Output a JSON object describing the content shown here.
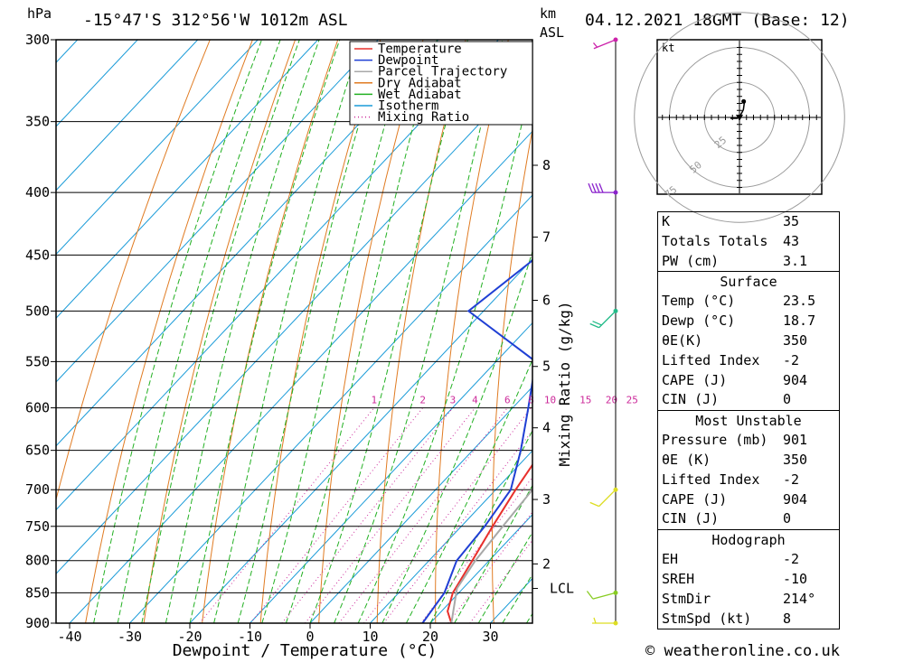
{
  "header": {
    "pressure_unit": "hPa",
    "location": "-15°47'S  312°56'W  1012m  ASL",
    "km_label": "km",
    "asl_label": "ASL",
    "datetime": "04.12.2021  18GMT  (Base: 12)"
  },
  "chart_data": {
    "type": "line",
    "subtype": "skew-T log-P diagram",
    "title": "-15°47'S  312°56'W  1012m  ASL",
    "xlabel": "Dewpoint / Temperature (°C)",
    "ylabel": "hPa",
    "right_axis_label": "Mixing Ratio (g/kg)",
    "x_ticks": [
      -40,
      -30,
      -20,
      -10,
      0,
      10,
      20,
      30
    ],
    "x_range": [
      -43,
      37
    ],
    "pressure_ticks": [
      300,
      350,
      400,
      450,
      500,
      550,
      600,
      650,
      700,
      750,
      800,
      850,
      900
    ],
    "pressure_range": [
      300,
      900
    ],
    "height_km_ticks": [
      {
        "km": "8",
        "p": 380
      },
      {
        "km": "7",
        "p": 435
      },
      {
        "km": "6",
        "p": 490
      },
      {
        "km": "5",
        "p": 555
      },
      {
        "km": "4",
        "p": 623
      },
      {
        "km": "3",
        "p": 713
      },
      {
        "km": "2",
        "p": 805
      },
      {
        "km": "LCL",
        "p": 843
      }
    ],
    "mixing_ratio_labels": [
      "1",
      "2",
      "3",
      "4",
      "6",
      "8",
      "10",
      "15",
      "20",
      "25"
    ],
    "legend": [
      {
        "name": "Temperature",
        "color": "#e8302c",
        "style": "solid"
      },
      {
        "name": "Dewpoint",
        "color": "#1f3fd4",
        "style": "solid"
      },
      {
        "name": "Parcel Trajectory",
        "color": "#a8a8a8",
        "style": "solid"
      },
      {
        "name": "Dry Adiabat",
        "color": "#e07b22",
        "style": "solid"
      },
      {
        "name": "Wet Adiabat",
        "color": "#22b022",
        "style": "solid"
      },
      {
        "name": "Isotherm",
        "color": "#1a9bd8",
        "style": "solid"
      },
      {
        "name": "Mixing Ratio",
        "color": "#cc2a9a",
        "style": "dotted"
      }
    ],
    "legend_placement": "top-right",
    "series": [
      {
        "name": "Temperature",
        "color": "#e8302c",
        "points": [
          [
            900,
            23.5
          ],
          [
            880,
            21
          ],
          [
            850,
            19
          ],
          [
            800,
            17.2
          ],
          [
            750,
            15.2
          ],
          [
            700,
            13.3
          ],
          [
            650,
            11.6
          ],
          [
            600,
            9.3
          ],
          [
            550,
            7.2
          ],
          [
            500,
            4.6
          ],
          [
            450,
            0.2
          ],
          [
            400,
            -4.4
          ],
          [
            350,
            -9.8
          ],
          [
            300,
            -15.6
          ]
        ]
      },
      {
        "name": "Dewpoint",
        "color": "#1f3fd4",
        "points": [
          [
            900,
            18.7
          ],
          [
            850,
            17.6
          ],
          [
            800,
            14.6
          ],
          [
            750,
            13.9
          ],
          [
            700,
            12.5
          ],
          [
            650,
            8.0
          ],
          [
            600,
            2.6
          ],
          [
            550,
            -3.4
          ],
          [
            500,
            -22.5
          ],
          [
            450,
            -19.5
          ],
          [
            400,
            -10.5
          ],
          [
            350,
            -13.7
          ],
          [
            300,
            -18.7
          ]
        ]
      },
      {
        "name": "Parcel Trajectory",
        "color": "#a8a8a8",
        "points": [
          [
            900,
            23.5
          ],
          [
            843,
            19.0
          ],
          [
            800,
            17.7
          ],
          [
            750,
            16.9
          ],
          [
            700,
            16.1
          ],
          [
            650,
            15.2
          ],
          [
            600,
            14.1
          ],
          [
            550,
            12.6
          ],
          [
            500,
            9.8
          ],
          [
            450,
            6.3
          ],
          [
            400,
            2.0
          ],
          [
            350,
            -3.0
          ]
        ]
      }
    ]
  },
  "hodograph": {
    "unit_label": "kt",
    "ring_labels": [
      "25",
      "50",
      "75"
    ],
    "points_kt": [
      [
        0,
        0
      ],
      [
        1.2,
        2.5
      ],
      [
        2.8,
        5.5
      ],
      [
        3.5,
        10.6
      ],
      [
        3.0,
        11.4
      ]
    ],
    "storm_motion": {
      "dir_deg": 214,
      "speed_kt": 8
    }
  },
  "wind_barbs": [
    {
      "p": 300,
      "color": "#cc22aa",
      "dir": 248,
      "kt": 5
    },
    {
      "p": 400,
      "color": "#8a22cc",
      "dir": 270,
      "kt": 40
    },
    {
      "p": 500,
      "color": "#22bb88",
      "dir": 225,
      "kt": 20
    },
    {
      "p": 700,
      "color": "#dddd22",
      "dir": 225,
      "kt": 10
    },
    {
      "p": 850,
      "color": "#88cc22",
      "dir": 255,
      "kt": 10
    },
    {
      "p": 900,
      "color": "#dddd22",
      "dir": 270,
      "kt": 5
    }
  ],
  "indices": [
    {
      "label": "K",
      "value": "35"
    },
    {
      "label": "Totals Totals",
      "value": "43"
    },
    {
      "label": "PW (cm)",
      "value": "3.1"
    }
  ],
  "surface": {
    "title": "Surface",
    "rows": [
      {
        "label": "Temp (°C)",
        "value": "23.5"
      },
      {
        "label": "Dewp (°C)",
        "value": "18.7"
      },
      {
        "label": "θE(K)",
        "value": "350"
      },
      {
        "label": "Lifted Index",
        "value": "-2"
      },
      {
        "label": "CAPE (J)",
        "value": "904"
      },
      {
        "label": "CIN (J)",
        "value": "0"
      }
    ]
  },
  "most_unstable": {
    "title": "Most Unstable",
    "rows": [
      {
        "label": "Pressure (mb)",
        "value": "901"
      },
      {
        "label": "θE (K)",
        "value": "350"
      },
      {
        "label": "Lifted Index",
        "value": "-2"
      },
      {
        "label": "CAPE (J)",
        "value": "904"
      },
      {
        "label": "CIN (J)",
        "value": "0"
      }
    ]
  },
  "hodograph_table": {
    "title": "Hodograph",
    "rows": [
      {
        "label": "EH",
        "value": "-2"
      },
      {
        "label": "SREH",
        "value": "-10"
      },
      {
        "label": "StmDir",
        "value": "214°"
      },
      {
        "label": "StmSpd (kt)",
        "value": "8"
      }
    ]
  },
  "footer": {
    "copyright": "© weatheronline.co.uk"
  }
}
